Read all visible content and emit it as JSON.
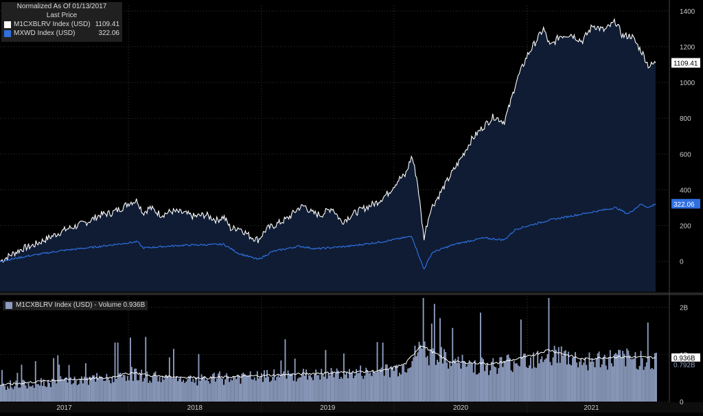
{
  "legend": {
    "header_line1": "Normalized As Of 01/13/2017",
    "header_line2": "Last Price",
    "items": [
      {
        "label": "M1CXBLRV Index (USD)",
        "value": "1109.41",
        "color": "#ffffff"
      },
      {
        "label": "MXWD Index (USD)",
        "value": "322.06",
        "color": "#2f6fe0"
      }
    ]
  },
  "volume_legend": {
    "label": "M1CXBLRV Index (USD) - Volume 0.936B"
  },
  "colors": {
    "background": "#000000",
    "area_fill": "#0f1c33",
    "primary_line": "#ffffff",
    "secondary_line": "#2f6fe0",
    "volume_bars": "#8d9cbf",
    "volume_ma": "#ffffff",
    "grid": "#3a3a3a"
  },
  "chart_data": [
    {
      "type": "line",
      "y_ticks": [
        "1400",
        "1200",
        "1000",
        "800",
        "600",
        "400",
        "200",
        "0"
      ],
      "ylim": [
        -170,
        1430
      ],
      "x_tick_labels": [
        "2017",
        "2018",
        "2019",
        "2020",
        "2021"
      ],
      "xlim": [
        "2017-01-13",
        "2021-12-20"
      ],
      "grid": true,
      "last_value_tags": [
        "1109.41",
        "322.06"
      ],
      "series": [
        {
          "name": "M1CXBLRV Index (USD)",
          "style": "line-area",
          "points": [
            [
              "2017-01-13",
              0
            ],
            [
              "2017-02-15",
              40
            ],
            [
              "2017-03-15",
              70
            ],
            [
              "2017-04-15",
              90
            ],
            [
              "2017-05-15",
              120
            ],
            [
              "2017-06-15",
              150
            ],
            [
              "2017-07-15",
              180
            ],
            [
              "2017-08-15",
              200
            ],
            [
              "2017-09-15",
              225
            ],
            [
              "2017-10-15",
              260
            ],
            [
              "2017-11-15",
              270
            ],
            [
              "2017-12-15",
              300
            ],
            [
              "2018-01-05",
              330
            ],
            [
              "2018-01-26",
              340
            ],
            [
              "2018-02-10",
              270
            ],
            [
              "2018-03-01",
              300
            ],
            [
              "2018-04-01",
              260
            ],
            [
              "2018-05-01",
              280
            ],
            [
              "2018-06-01",
              270
            ],
            [
              "2018-07-01",
              250
            ],
            [
              "2018-08-01",
              260
            ],
            [
              "2018-09-01",
              230
            ],
            [
              "2018-09-20",
              250
            ],
            [
              "2018-10-10",
              180
            ],
            [
              "2018-11-01",
              190
            ],
            [
              "2018-12-01",
              140
            ],
            [
              "2018-12-24",
              120
            ],
            [
              "2019-01-15",
              180
            ],
            [
              "2019-02-15",
              210
            ],
            [
              "2019-03-15",
              240
            ],
            [
              "2019-04-15",
              300
            ],
            [
              "2019-05-01",
              310
            ],
            [
              "2019-05-20",
              270
            ],
            [
              "2019-06-15",
              260
            ],
            [
              "2019-07-15",
              300
            ],
            [
              "2019-08-10",
              220
            ],
            [
              "2019-09-15",
              270
            ],
            [
              "2019-10-15",
              300
            ],
            [
              "2019-11-15",
              330
            ],
            [
              "2019-12-15",
              380
            ],
            [
              "2020-01-15",
              460
            ],
            [
              "2020-02-01",
              480
            ],
            [
              "2020-02-19",
              590
            ],
            [
              "2020-03-05",
              450
            ],
            [
              "2020-03-23",
              130
            ],
            [
              "2020-04-10",
              290
            ],
            [
              "2020-05-01",
              360
            ],
            [
              "2020-06-01",
              470
            ],
            [
              "2020-07-01",
              570
            ],
            [
              "2020-08-01",
              680
            ],
            [
              "2020-09-01",
              750
            ],
            [
              "2020-10-01",
              810
            ],
            [
              "2020-10-30",
              780
            ],
            [
              "2020-11-15",
              880
            ],
            [
              "2020-12-01",
              1000
            ],
            [
              "2021-01-01",
              1150
            ],
            [
              "2021-02-15",
              1300
            ],
            [
              "2021-03-05",
              1200
            ],
            [
              "2021-04-01",
              1260
            ],
            [
              "2021-05-01",
              1270
            ],
            [
              "2021-06-01",
              1230
            ],
            [
              "2021-07-01",
              1320
            ],
            [
              "2021-08-01",
              1290
            ],
            [
              "2021-09-01",
              1340
            ],
            [
              "2021-09-20",
              1260
            ],
            [
              "2021-10-15",
              1260
            ],
            [
              "2021-11-15",
              1160
            ],
            [
              "2021-12-01",
              1090
            ],
            [
              "2021-12-20",
              1109.41
            ]
          ]
        },
        {
          "name": "MXWD Index (USD)",
          "style": "line",
          "points": [
            [
              "2017-01-13",
              0
            ],
            [
              "2017-04-01",
              30
            ],
            [
              "2017-07-01",
              60
            ],
            [
              "2017-10-01",
              80
            ],
            [
              "2018-01-26",
              110
            ],
            [
              "2018-02-10",
              75
            ],
            [
              "2018-06-01",
              90
            ],
            [
              "2018-09-20",
              95
            ],
            [
              "2018-10-30",
              45
            ],
            [
              "2018-12-24",
              10
            ],
            [
              "2019-02-01",
              55
            ],
            [
              "2019-04-15",
              85
            ],
            [
              "2019-06-01",
              70
            ],
            [
              "2019-09-01",
              85
            ],
            [
              "2019-12-01",
              110
            ],
            [
              "2020-02-19",
              140
            ],
            [
              "2020-03-23",
              -45
            ],
            [
              "2020-04-15",
              50
            ],
            [
              "2020-06-15",
              95
            ],
            [
              "2020-09-01",
              130
            ],
            [
              "2020-10-30",
              120
            ],
            [
              "2020-12-01",
              180
            ],
            [
              "2021-03-01",
              230
            ],
            [
              "2021-06-01",
              265
            ],
            [
              "2021-09-01",
              300
            ],
            [
              "2021-10-05",
              265
            ],
            [
              "2021-11-10",
              320
            ],
            [
              "2021-12-01",
              300
            ],
            [
              "2021-12-20",
              322.06
            ]
          ]
        }
      ]
    },
    {
      "type": "bar",
      "name": "M1CXBLRV Index (USD) - Volume",
      "y_ticks": [
        "2B",
        "1B",
        "0"
      ],
      "ylim": [
        0,
        2.2
      ],
      "last_value_tags": [
        "0.936B",
        "0.792B"
      ],
      "volume_profile_B": [
        [
          "2017-01-13",
          0.35
        ],
        [
          "2017-06-01",
          0.45
        ],
        [
          "2017-11-01",
          0.5
        ],
        [
          "2018-01-15",
          0.62
        ],
        [
          "2018-03-01",
          0.55
        ],
        [
          "2018-08-01",
          0.5
        ],
        [
          "2019-01-01",
          0.55
        ],
        [
          "2019-06-01",
          0.6
        ],
        [
          "2019-12-01",
          0.65
        ],
        [
          "2020-02-01",
          0.8
        ],
        [
          "2020-03-15",
          1.2
        ],
        [
          "2020-06-01",
          0.85
        ],
        [
          "2020-10-01",
          0.8
        ],
        [
          "2021-01-01",
          0.95
        ],
        [
          "2021-03-01",
          1.1
        ],
        [
          "2021-06-01",
          0.9
        ],
        [
          "2021-09-01",
          0.95
        ],
        [
          "2021-12-20",
          0.936
        ]
      ]
    }
  ]
}
